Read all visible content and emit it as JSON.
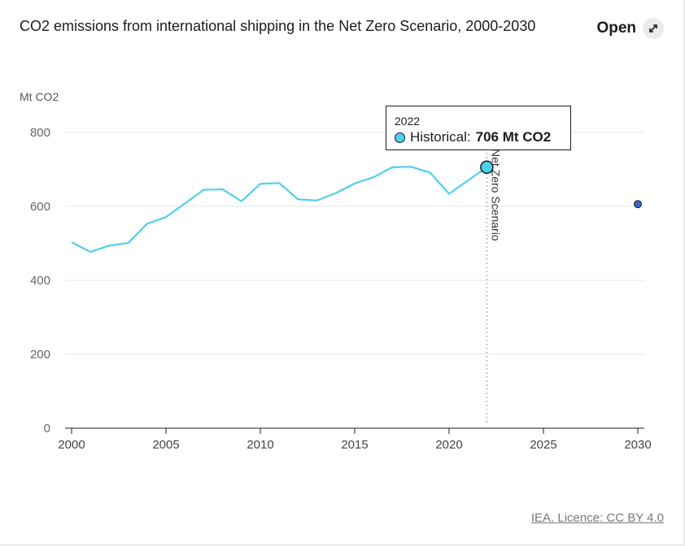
{
  "header": {
    "title": "CO2 emissions from international shipping in the Net Zero Scenario, 2000-2030",
    "open_label": "Open",
    "open_icon": "expand-arrows-icon"
  },
  "credit": "IEA. Licence: CC BY 4.0",
  "tooltip": {
    "year": "2022",
    "series_label": "Historical:",
    "value_text": "706 Mt CO2"
  },
  "chart_data": {
    "type": "line",
    "title": "CO2 emissions from international shipping in the Net Zero Scenario, 2000-2030",
    "ylabel": "Mt CO2",
    "xlabel": "",
    "xlim": [
      2000,
      2030
    ],
    "ylim": [
      0,
      800
    ],
    "x_ticks": [
      2000,
      2005,
      2010,
      2015,
      2020,
      2025,
      2030
    ],
    "y_ticks": [
      0,
      200,
      400,
      600,
      800
    ],
    "grid": true,
    "series": [
      {
        "name": "Historical",
        "color": "#4fd0ec",
        "x": [
          2000,
          2001,
          2002,
          2003,
          2004,
          2005,
          2006,
          2007,
          2008,
          2009,
          2010,
          2011,
          2012,
          2013,
          2014,
          2015,
          2016,
          2017,
          2018,
          2019,
          2020,
          2021,
          2022
        ],
        "y": [
          503,
          477,
          494,
          501,
          553,
          571,
          608,
          645,
          646,
          614,
          661,
          663,
          619,
          616,
          636,
          662,
          679,
          706,
          707,
          691,
          634,
          670,
          706
        ]
      },
      {
        "color": "#3a67c9",
        "x": [
          2030
        ],
        "y": [
          606
        ]
      }
    ],
    "annotations": [
      {
        "type": "vline",
        "x": 2022,
        "label": "Net Zero Scenario"
      }
    ],
    "highlight": {
      "series": "Historical",
      "x": 2022,
      "y": 706
    }
  }
}
